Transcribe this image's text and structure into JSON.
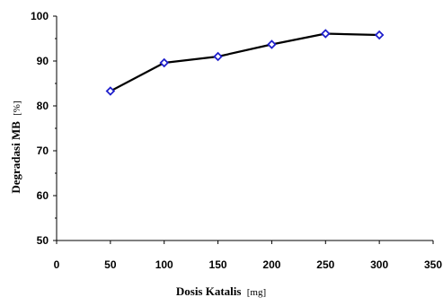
{
  "chart_data": {
    "type": "line",
    "xlabel": "Dosis Katalis",
    "xlabel_unit": "[mg]",
    "ylabel": "Degradasi MB",
    "ylabel_unit": "[%]",
    "xlim": [
      0,
      350
    ],
    "ylim": [
      50,
      100
    ],
    "x_ticks": [
      "0",
      "50",
      "100",
      "150",
      "200",
      "250",
      "300",
      "350"
    ],
    "y_ticks": [
      "50",
      "60",
      "70",
      "80",
      "90",
      "100"
    ],
    "grid": false,
    "legend": "none",
    "series": [
      {
        "x": [
          50,
          100,
          150,
          200,
          250,
          300
        ],
        "values": [
          83.3,
          89.6,
          91.0,
          93.7,
          96.1,
          95.8
        ],
        "line_color": "#000000",
        "marker": "diamond",
        "marker_color": "#1f1fcc"
      }
    ]
  }
}
